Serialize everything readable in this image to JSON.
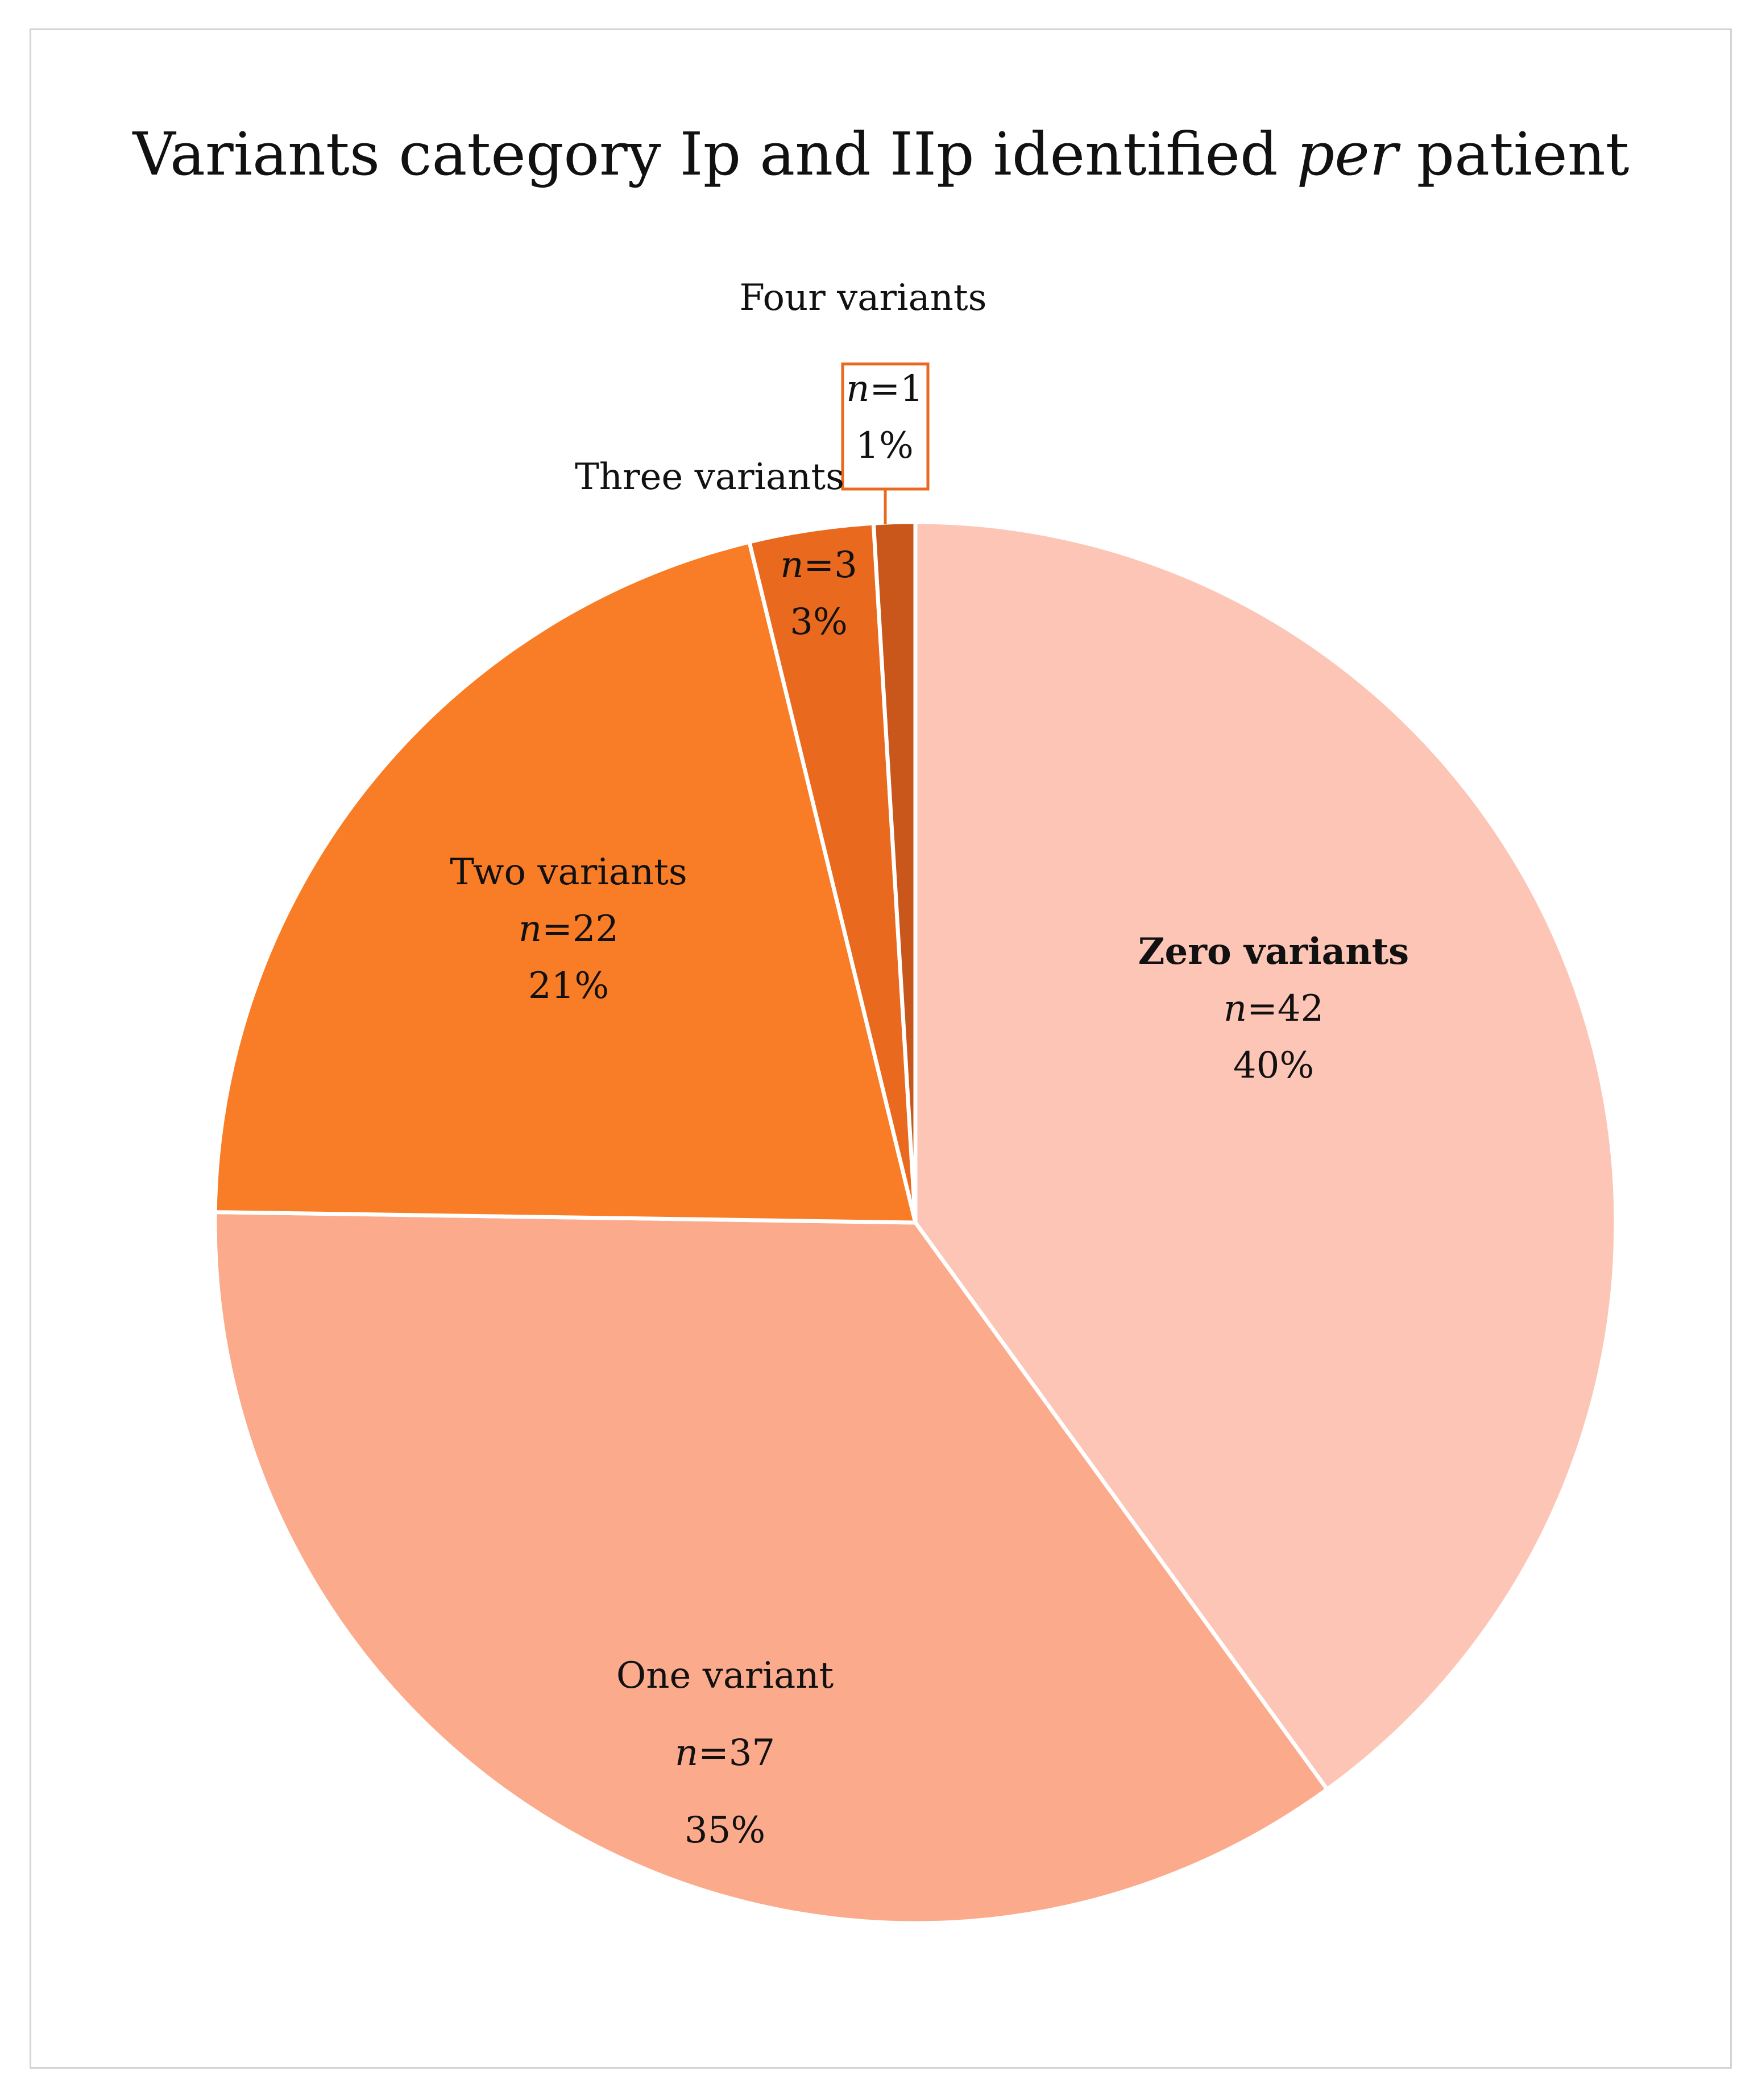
{
  "chart_data": {
    "type": "pie",
    "title": "Variants category Ip and IIp identified per patient",
    "title_parts": {
      "before": "Variants category Ip and IIp identified ",
      "italic": "per",
      "after": " patient"
    },
    "n_prefix": "n",
    "slices": [
      {
        "name": "Zero variants",
        "n": 42,
        "percent": "40%",
        "color": "#fdc5b5",
        "bold": true
      },
      {
        "name": "One variant",
        "n": 37,
        "percent": "35%",
        "color": "#fbaa8b",
        "bold": false
      },
      {
        "name": "Two variants",
        "n": 22,
        "percent": "21%",
        "color": "#f97c27",
        "bold": false
      },
      {
        "name": "Three variants",
        "n": 3,
        "percent": "3%",
        "color": "#e9691f",
        "bold": false
      },
      {
        "name": "Four variants",
        "n": 1,
        "percent": "1%",
        "color": "#c9561a",
        "bold": false
      }
    ],
    "start": "12 o'clock",
    "direction": "clockwise",
    "legend": "none",
    "callout_color": "#e9691f"
  }
}
